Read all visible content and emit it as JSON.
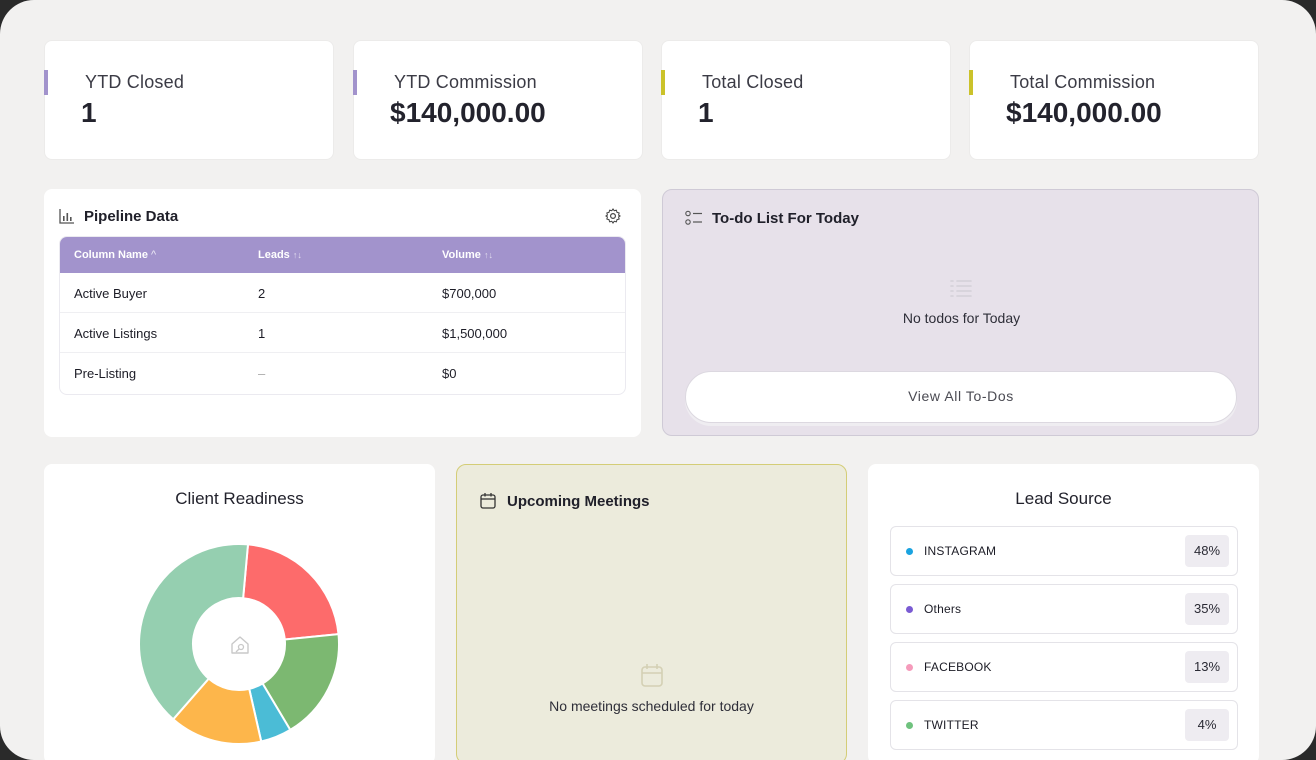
{
  "stats": [
    {
      "label": "YTD Closed",
      "value": "1",
      "accent": "#a293cc"
    },
    {
      "label": "YTD Commission",
      "value": "$140,000.00",
      "accent": "#a293cc"
    },
    {
      "label": "Total Closed",
      "value": "1",
      "accent": "#cbc22a"
    },
    {
      "label": "Total Commission",
      "value": "$140,000.00",
      "accent": "#cbc22a"
    }
  ],
  "pipeline": {
    "title": "Pipeline Data",
    "columns": [
      "Column Name",
      "Leads",
      "Volume"
    ],
    "sort_icons": [
      "^",
      "↑↓",
      "↑↓"
    ],
    "rows": [
      {
        "name": "Active Buyer",
        "leads": "2",
        "volume": "$700,000"
      },
      {
        "name": "Active Listings",
        "leads": "1",
        "volume": "$1,500,000"
      },
      {
        "name": "Pre-Listing",
        "leads": "–",
        "volume": "$0"
      }
    ]
  },
  "todo": {
    "title": "To-do List For Today",
    "empty_text": "No todos for Today",
    "button_label": "View All To-Dos"
  },
  "readiness": {
    "title": "Client Readiness",
    "segments": [
      {
        "value": 22,
        "color": "#fd6b6b"
      },
      {
        "value": 18,
        "color": "#7cb871"
      },
      {
        "value": 5,
        "color": "#4bbcd6"
      },
      {
        "value": 15,
        "color": "#fdb64b"
      },
      {
        "value": 40,
        "color": "#95cfb0"
      }
    ]
  },
  "meetings": {
    "title": "Upcoming Meetings",
    "empty_text": "No meetings scheduled for today"
  },
  "lead_source": {
    "title": "Lead Source",
    "items": [
      {
        "name": "INSTAGRAM",
        "pct": "48%",
        "color": "#1aa3e0"
      },
      {
        "name": "Others",
        "pct": "35%",
        "color": "#7a5bd3"
      },
      {
        "name": "FACEBOOK",
        "pct": "13%",
        "color": "#f59bbb"
      },
      {
        "name": "TWITTER",
        "pct": "4%",
        "color": "#6fc27e"
      }
    ]
  }
}
